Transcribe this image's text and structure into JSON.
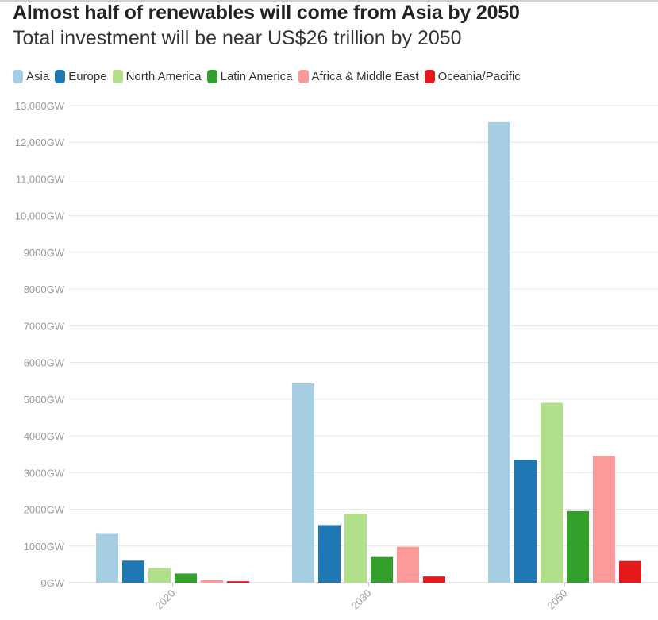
{
  "title": "Almost half of renewables will come from Asia by 2050",
  "subtitle": "Total investment will be near US$26 trillion by 2050",
  "colors": {
    "Asia": "#a6cee3",
    "Europe": "#1f78b4",
    "North America": "#b2df8a",
    "Latin America": "#33a02c",
    "Africa & Middle East": "#fb9a99",
    "Oceania/Pacific": "#e31a1c"
  },
  "chart_data": {
    "type": "bar",
    "title": "Almost half of renewables will come from Asia by 2050",
    "subtitle": "Total investment will be near US$26 trillion by 2050",
    "xlabel": "",
    "ylabel": "",
    "categories": [
      "2020",
      "2030",
      "2050"
    ],
    "ylim": [
      0,
      13000
    ],
    "yticks": [
      0,
      1000,
      2000,
      3000,
      4000,
      5000,
      6000,
      7000,
      8000,
      9000,
      10000,
      11000,
      12000,
      13000
    ],
    "ytick_labels": [
      "0GW",
      "1000GW",
      "2000GW",
      "3000GW",
      "4000GW",
      "5000GW",
      "6000GW",
      "7000GW",
      "8000GW",
      "9000GW",
      "10,000GW",
      "11,000GW",
      "12,000GW",
      "13,000GW"
    ],
    "grid": "horizontal",
    "legend_position": "top-left",
    "series": [
      {
        "name": "Asia",
        "values": [
          1330,
          5430,
          12550
        ]
      },
      {
        "name": "Europe",
        "values": [
          600,
          1570,
          3350
        ]
      },
      {
        "name": "North America",
        "values": [
          400,
          1880,
          4900
        ]
      },
      {
        "name": "Latin America",
        "values": [
          250,
          700,
          1950
        ]
      },
      {
        "name": "Africa & Middle East",
        "values": [
          70,
          980,
          3450
        ]
      },
      {
        "name": "Oceania/Pacific",
        "values": [
          40,
          170,
          590
        ]
      }
    ]
  }
}
